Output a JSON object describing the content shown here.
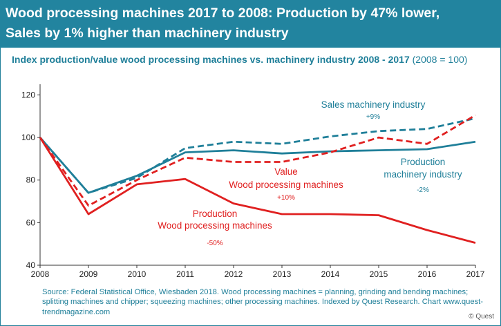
{
  "header": {
    "title_line1": "Wood processing machines 2017 to 2008: Production by 47% lower,",
    "title_line2": "Sales by  1% higher than machinery industry"
  },
  "subtitle": {
    "main": "Index production/value wood processing machines vs. machinery industry 2008 - 2017",
    "note": "(2008 = 100)"
  },
  "chart_data": {
    "type": "line",
    "x": [
      "2008",
      "2009",
      "2010",
      "2011",
      "2012",
      "2013",
      "2014",
      "2015",
      "2016",
      "2017"
    ],
    "ylim": [
      40,
      125
    ],
    "yticks": [
      40,
      60,
      80,
      100,
      120
    ],
    "grid": false,
    "series": [
      {
        "id": "sales_machinery",
        "style": "dashed",
        "color": "#1f7f99",
        "values": [
          100,
          74,
          81,
          95,
          98,
          97,
          100.5,
          103,
          104,
          109
        ]
      },
      {
        "id": "production_machinery",
        "style": "solid",
        "color": "#1f7f99",
        "values": [
          100,
          74,
          82,
          93,
          94,
          92.5,
          93.5,
          94,
          94.5,
          98
        ]
      },
      {
        "id": "value_wood",
        "style": "dashed",
        "color": "#e02020",
        "values": [
          100,
          68,
          80,
          90.5,
          88.5,
          88.5,
          93,
          100,
          97,
          110.5
        ]
      },
      {
        "id": "production_wood",
        "style": "solid",
        "color": "#e02020",
        "values": [
          100,
          64,
          78,
          80.5,
          69,
          64,
          64,
          63.5,
          56.5,
          50.5
        ]
      }
    ],
    "annotations": {
      "sales_label": "Sales machinery industry",
      "sales_change": "+9%",
      "prodmach_label_1": "Production",
      "prodmach_label_2": "machinery industry",
      "prodmach_change": "-2%",
      "value_label_1": "Value",
      "value_label_2": "Wood processing machines",
      "value_change": "+10%",
      "prodwood_label_1": "Production",
      "prodwood_label_2": "Wood processing machines",
      "prodwood_change": "-50%"
    }
  },
  "footer": {
    "source": "Source: Federal Statistical Office, Wiesbaden 2018. Wood processing machines = planning, grinding and bending machines; splitting machines and chipper; squeezing machines; other processing machines. Indexed by Quest Research.  Chart www.quest-trendmagazine.com",
    "copyright": "© Quest"
  },
  "colors": {
    "brand_blue": "#22849f",
    "line_red": "#e02020",
    "line_blue": "#1f7f99"
  }
}
